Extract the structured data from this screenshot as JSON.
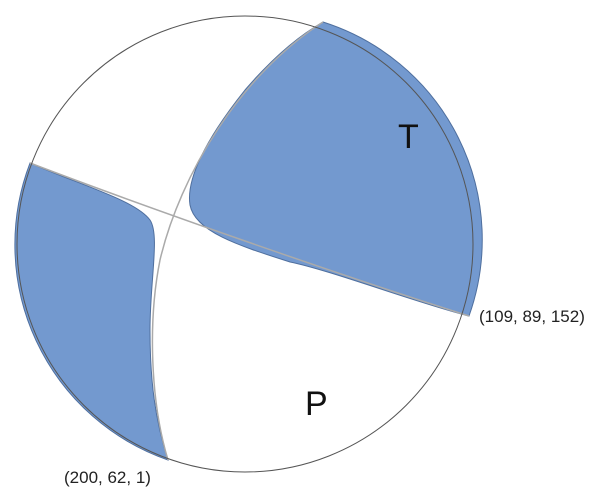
{
  "diagram": {
    "labels": {
      "tension": "T",
      "pressure": "P"
    },
    "planes": [
      {
        "label": "(109, 89, 152)",
        "strike": 109,
        "dip": 89,
        "rake": 152
      },
      {
        "label": "(200, 62, 1)",
        "strike": 200,
        "dip": 62,
        "rake": 1
      }
    ],
    "colors": {
      "compressional_fill": "#7399cf",
      "compressional_edge": "#4f6f9e",
      "dilatational_fill": "#ffffff",
      "outline": "#555555",
      "nodal_line": "#aaaaaa"
    }
  }
}
